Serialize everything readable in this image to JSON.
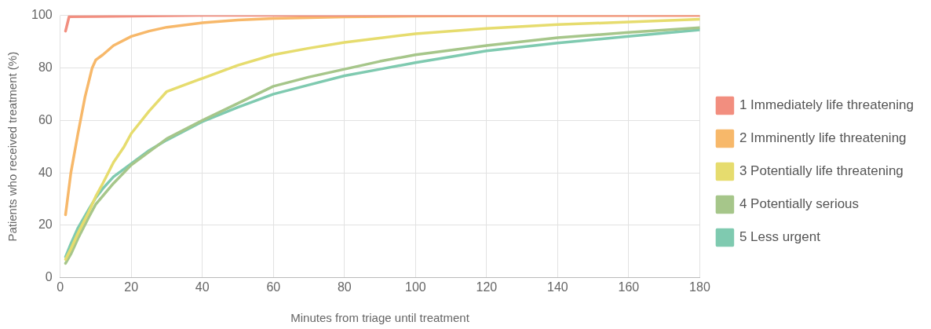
{
  "chart_data": {
    "type": "line",
    "xlabel": "Minutes from triage until treatment",
    "ylabel": "Patients who received treatment (%)",
    "xlim": [
      0,
      180
    ],
    "xticks": [
      0,
      20,
      40,
      60,
      80,
      100,
      120,
      140,
      160,
      180
    ],
    "ylim": [
      0,
      100
    ],
    "yticks": [
      0,
      20,
      40,
      60,
      80,
      100
    ],
    "grid": true,
    "legend": "right",
    "marker": "none",
    "line_style": "solid",
    "series": [
      {
        "name": "1 Immediately life threatening",
        "color": "#f28e7f",
        "x": [
          1.5,
          2.5,
          10,
          40,
          180
        ],
        "values": [
          94,
          99.5,
          99.6,
          100,
          100
        ]
      },
      {
        "name": "2 Imminently life threatening",
        "color": "#f7b86a",
        "x": [
          1.5,
          3,
          5,
          7,
          9,
          10,
          12,
          15,
          20,
          25,
          30,
          40,
          50,
          60,
          80,
          100,
          120,
          180
        ],
        "values": [
          24,
          40,
          55,
          69,
          80,
          83,
          85,
          88.5,
          92,
          94,
          95.5,
          97.2,
          98.2,
          98.8,
          99.4,
          99.7,
          99.9,
          100
        ]
      },
      {
        "name": "3 Potentially life threatening",
        "color": "#e6dc6e",
        "x": [
          1.5,
          3,
          5,
          8,
          10,
          12,
          15,
          18,
          20,
          25,
          30,
          35,
          40,
          50,
          60,
          70,
          80,
          100,
          120,
          140,
          160,
          180
        ],
        "values": [
          7,
          11,
          17,
          25,
          31,
          36,
          44,
          50,
          55,
          63.5,
          71,
          73.5,
          76,
          81,
          85,
          87.5,
          89.7,
          93,
          95,
          96.5,
          97.5,
          98.5
        ]
      },
      {
        "name": "4 Potentially serious",
        "color": "#a6c68a",
        "x": [
          1.5,
          3,
          5,
          8,
          10,
          15,
          20,
          25,
          30,
          40,
          50,
          60,
          70,
          80,
          90,
          100,
          120,
          140,
          160,
          180
        ],
        "values": [
          5.5,
          9,
          15,
          23,
          28,
          36,
          43,
          48,
          53,
          60,
          66.5,
          73,
          76.5,
          79.5,
          82.5,
          85,
          88.5,
          91.5,
          93.5,
          95.3
        ]
      },
      {
        "name": "5 Less urgent",
        "color": "#7fcab0",
        "x": [
          1.5,
          3,
          5,
          8,
          10,
          12,
          15,
          20,
          25,
          30,
          40,
          50,
          60,
          70,
          80,
          90,
          100,
          120,
          140,
          160,
          180
        ],
        "values": [
          8,
          13,
          19,
          26,
          30.5,
          34,
          38.5,
          43.5,
          48.5,
          52.5,
          59.5,
          65,
          70,
          73.5,
          77,
          79.5,
          82,
          86.5,
          89.5,
          92,
          94.5
        ]
      }
    ]
  }
}
